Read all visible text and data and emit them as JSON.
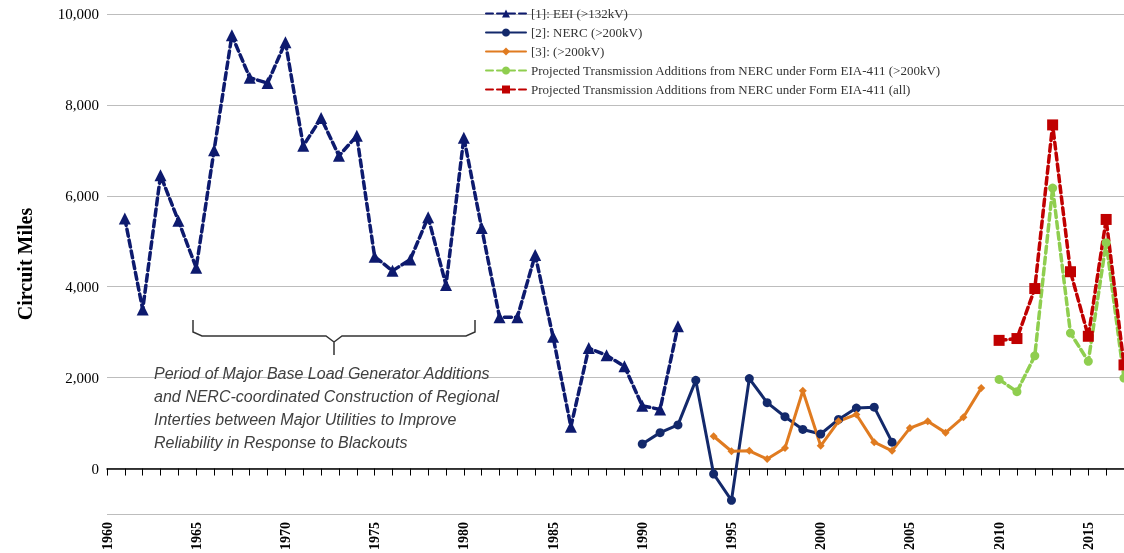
{
  "chart_data": {
    "type": "line",
    "ylabel": "Circuit Miles",
    "annotations": [
      "Period of Major Base Load Generator Additions and NERC-coordinated Construction of Regional Interties between Major Utilities to Improve Reliability in Response to Blackouts"
    ],
    "xlim": [
      1960,
      2017
    ],
    "ylim": [
      -1000,
      10000
    ],
    "xticks": [
      1960,
      {
        "value": 1961,
        "label": null
      },
      {
        "value": 1962,
        "label": null
      },
      {
        "value": 1963,
        "label": null
      },
      {
        "value": 1964,
        "label": null
      },
      1965,
      {
        "value": 1966,
        "label": null
      },
      {
        "value": 1967,
        "label": null
      },
      {
        "value": 1968,
        "label": null
      },
      {
        "value": 1969,
        "label": null
      },
      1970,
      {
        "value": 1971,
        "label": null
      },
      {
        "value": 1972,
        "label": null
      },
      {
        "value": 1973,
        "label": null
      },
      {
        "value": 1974,
        "label": null
      },
      1975,
      {
        "value": 1976,
        "label": null
      },
      {
        "value": 1977,
        "label": null
      },
      {
        "value": 1978,
        "label": null
      },
      {
        "value": 1979,
        "label": null
      },
      1980,
      {
        "value": 1981,
        "label": null
      },
      {
        "value": 1982,
        "label": null
      },
      {
        "value": 1983,
        "label": null
      },
      {
        "value": 1984,
        "label": null
      },
      1985,
      {
        "value": 1986,
        "label": null
      },
      {
        "value": 1987,
        "label": null
      },
      {
        "value": 1988,
        "label": null
      },
      {
        "value": 1989,
        "label": null
      },
      1990,
      {
        "value": 1991,
        "label": null
      },
      {
        "value": 1992,
        "label": null
      },
      {
        "value": 1993,
        "label": null
      },
      {
        "value": 1994,
        "label": null
      },
      1995,
      {
        "value": 1996,
        "label": null
      },
      {
        "value": 1997,
        "label": null
      },
      {
        "value": 1998,
        "label": null
      },
      {
        "value": 1999,
        "label": null
      },
      2000,
      {
        "value": 2001,
        "label": null
      },
      {
        "value": 2002,
        "label": null
      },
      {
        "value": 2003,
        "label": null
      },
      {
        "value": 2004,
        "label": null
      },
      2005,
      {
        "value": 2006,
        "label": null
      },
      {
        "value": 2007,
        "label": null
      },
      {
        "value": 2008,
        "label": null
      },
      {
        "value": 2009,
        "label": null
      },
      2010,
      {
        "value": 2011,
        "label": null
      },
      {
        "value": 2012,
        "label": null
      },
      {
        "value": 2013,
        "label": null
      },
      {
        "value": 2014,
        "label": null
      },
      2015,
      {
        "value": 2016,
        "label": null
      },
      {
        "value": 2017,
        "label": null
      }
    ],
    "yticks": [
      0,
      {
        "value": 2000,
        "label": "2,000"
      },
      {
        "value": 4000,
        "label": "4,000"
      },
      {
        "value": 6000,
        "label": "6,000"
      },
      {
        "value": 8000,
        "label": "8,000"
      },
      {
        "value": 10000,
        "label": "10,000"
      }
    ],
    "grid": "y",
    "legend": "top",
    "series": [
      {
        "name": "[1]: EEI (>132kV)",
        "color": "#0d1a6e",
        "marker": "triangle",
        "line_style": "dashed",
        "x": [
          1961,
          1962,
          1963,
          1964,
          1965,
          1966,
          1967,
          1968,
          1969,
          1970,
          1971,
          1972,
          1973,
          1974,
          1975,
          1976,
          1977,
          1978,
          1979,
          1980,
          1981,
          1982,
          1983,
          1984,
          1985,
          1986,
          1987,
          1988,
          1989,
          1990,
          1991,
          1992
        ],
        "values": [
          5500,
          3500,
          6450,
          5450,
          4420,
          7000,
          9530,
          8600,
          8480,
          9380,
          7100,
          7710,
          6880,
          7320,
          4660,
          4350,
          4600,
          5530,
          4040,
          7280,
          5290,
          3330,
          3330,
          4700,
          2900,
          920,
          2650,
          2490,
          2250,
          1380,
          1300,
          3130
        ]
      },
      {
        "name": "[2]: NERC (>200kV)",
        "color": "#13296b",
        "marker": "circle",
        "line_style": "solid",
        "x": [
          1990,
          1991,
          1992,
          1993,
          1994,
          1995,
          1996,
          1997,
          1998,
          1999,
          2000,
          2001,
          2002,
          2003,
          2004
        ],
        "values": [
          540,
          790,
          960,
          1940,
          -120,
          -700,
          1980,
          1450,
          1140,
          860,
          760,
          1080,
          1330,
          1350,
          580
        ]
      },
      {
        "name": "[3]: (>200kV)",
        "color": "#e07b20",
        "marker": "diamond",
        "line_style": "solid",
        "x": [
          1994,
          1995,
          1996,
          1997,
          1998,
          1999,
          2000,
          2001,
          2002,
          2003,
          2004,
          2005,
          2006,
          2007,
          2008,
          2009
        ],
        "values": [
          710,
          380,
          390,
          210,
          450,
          1710,
          500,
          1040,
          1190,
          580,
          390,
          890,
          1040,
          790,
          1130,
          1770
        ]
      },
      {
        "name": "Projected Transmission Additions from NERC under Form EIA-411 (>200kV)",
        "color": "#8fce4f",
        "marker": "circle",
        "line_style": "dashed",
        "x": [
          2010,
          2011,
          2012,
          2013,
          2014,
          2015,
          2016,
          2017
        ],
        "values": [
          1960,
          1690,
          2480,
          6170,
          2980,
          2360,
          4970,
          1990
        ]
      },
      {
        "name": "Projected Transmission Additions from NERC under Form EIA-411 (all)",
        "color": "#c00000",
        "marker": "square",
        "line_style": "dashed",
        "x": [
          2010,
          2011,
          2012,
          2013,
          2014,
          2015,
          2016,
          2017
        ],
        "values": [
          2820,
          2860,
          3960,
          7560,
          4330,
          2910,
          5480,
          2280
        ]
      }
    ]
  }
}
